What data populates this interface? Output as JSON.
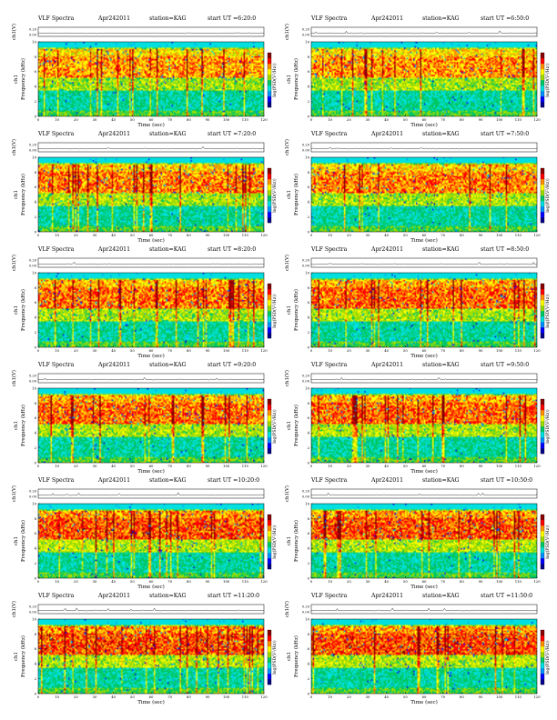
{
  "chart_data": {
    "type": "heatmap",
    "common": {
      "title": "VLF Spectra",
      "date": "Apr242011",
      "station": "station=KAG",
      "start_prefix": "start UT =",
      "top_ylabel": "ch1(V)",
      "top_yticks": [
        0.2,
        0.0
      ],
      "top_yticks_label": [
        "0.20",
        "0.00"
      ],
      "ylabel": "Frequency (kHz)",
      "ylabel_prefix": "ch1",
      "xlabel": "Time (sec)",
      "xlim": [
        0,
        120
      ],
      "ylim": [
        0,
        10
      ],
      "xticks": [
        0,
        10,
        20,
        30,
        40,
        50,
        60,
        70,
        80,
        90,
        100,
        110,
        120
      ],
      "yticks": [
        0,
        2,
        4,
        6,
        8,
        10
      ],
      "colorbar_label": "log(PSD(V²/Hz))",
      "colormap": [
        "#00008c",
        "#0000ff",
        "#0090ff",
        "#00e0e0",
        "#00c864",
        "#a0dc00",
        "#ffff00",
        "#ff9000",
        "#ff0000",
        "#8b0000"
      ]
    },
    "panels": [
      {
        "start_ut": "6:20:0",
        "intensity": 0.7
      },
      {
        "start_ut": "6:50:0",
        "intensity": 0.72
      },
      {
        "start_ut": "7:20:0",
        "intensity": 0.8
      },
      {
        "start_ut": "7:50:0",
        "intensity": 0.82
      },
      {
        "start_ut": "8:20:0",
        "intensity": 0.86
      },
      {
        "start_ut": "8:50:0",
        "intensity": 0.92
      },
      {
        "start_ut": "9:20:0",
        "intensity": 0.9
      },
      {
        "start_ut": "9:50:0",
        "intensity": 0.9
      },
      {
        "start_ut": "10:20:0",
        "intensity": 0.97
      },
      {
        "start_ut": "10:50:0",
        "intensity": 0.97
      },
      {
        "start_ut": "11:20:0",
        "intensity": 1.0
      },
      {
        "start_ut": "11:50:0",
        "intensity": 1.0
      }
    ]
  }
}
